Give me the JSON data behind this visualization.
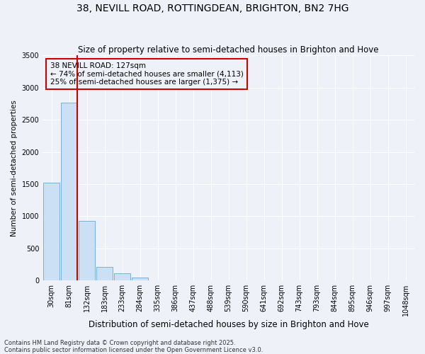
{
  "title": "38, NEVILL ROAD, ROTTINGDEAN, BRIGHTON, BN2 7HG",
  "subtitle": "Size of property relative to semi-detached houses in Brighton and Hove",
  "xlabel": "Distribution of semi-detached houses by size in Brighton and Hove",
  "ylabel": "Number of semi-detached properties",
  "categories": [
    "30sqm",
    "81sqm",
    "132sqm",
    "183sqm",
    "233sqm",
    "284sqm",
    "335sqm",
    "386sqm",
    "437sqm",
    "488sqm",
    "539sqm",
    "590sqm",
    "641sqm",
    "692sqm",
    "743sqm",
    "793sqm",
    "844sqm",
    "895sqm",
    "946sqm",
    "997sqm",
    "1048sqm"
  ],
  "values": [
    1520,
    2760,
    930,
    210,
    115,
    50,
    0,
    0,
    0,
    0,
    0,
    0,
    0,
    0,
    0,
    0,
    0,
    0,
    0,
    0,
    0
  ],
  "bar_color": "#cce0f5",
  "bar_edge_color": "#7ab0d4",
  "property_line_color": "#cc0000",
  "annotation_text": "38 NEVILL ROAD: 127sqm\n← 74% of semi-detached houses are smaller (4,113)\n25% of semi-detached houses are larger (1,375) →",
  "annotation_box_color": "#cc0000",
  "background_color": "#eef2f8",
  "ylim": [
    0,
    3500
  ],
  "yticks": [
    0,
    500,
    1000,
    1500,
    2000,
    2500,
    3000,
    3500
  ],
  "footer": "Contains HM Land Registry data © Crown copyright and database right 2025.\nContains public sector information licensed under the Open Government Licence v3.0.",
  "title_fontsize": 10,
  "subtitle_fontsize": 8.5,
  "xlabel_fontsize": 8.5,
  "ylabel_fontsize": 7.5,
  "tick_fontsize": 7,
  "annotation_fontsize": 7.5,
  "footer_fontsize": 6
}
